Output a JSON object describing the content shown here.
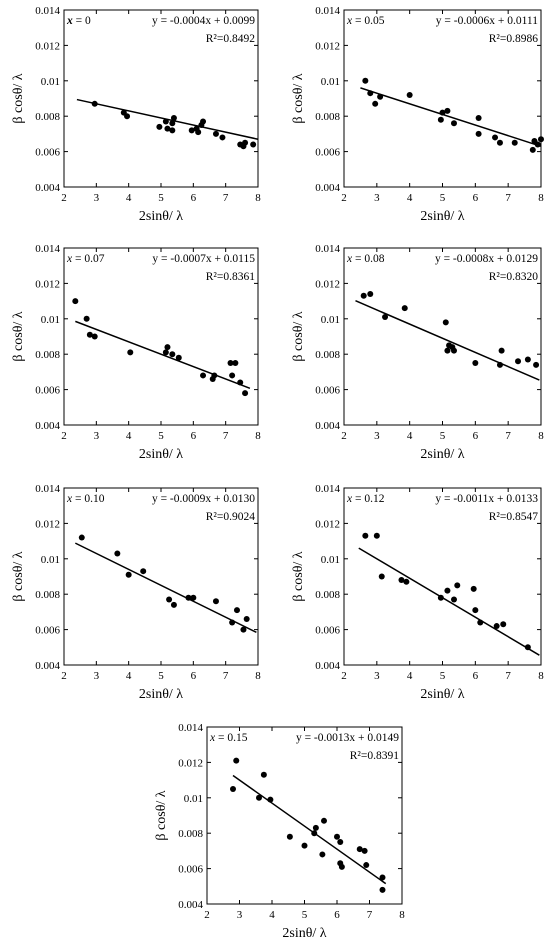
{
  "chart_data": [
    {
      "type": "scatter",
      "xlabel": "2sinθ/ λ",
      "ylabel": "β cosθ/ λ",
      "xlim": [
        2,
        8
      ],
      "ylim": [
        0.004,
        0.014
      ],
      "xticks": [
        "2",
        "3",
        "4",
        "5",
        "6",
        "7",
        "8"
      ],
      "yticks": [
        "0.004",
        "0.006",
        "0.008",
        "0.01",
        "0.012",
        "0.014"
      ],
      "grid": false,
      "label_var": "x",
      "label_val": "= 0",
      "equation": "y = -0.0004x + 0.0099",
      "r2": "R²=0.8492",
      "fit": {
        "slope": -0.0004,
        "intercept": 0.0099,
        "x_range": [
          2.4,
          8.0
        ]
      },
      "points": [
        [
          2.95,
          0.0087
        ],
        [
          3.85,
          0.0082
        ],
        [
          3.95,
          0.008
        ],
        [
          4.95,
          0.0074
        ],
        [
          5.15,
          0.0077
        ],
        [
          5.2,
          0.0073
        ],
        [
          5.35,
          0.0076
        ],
        [
          5.4,
          0.0079
        ],
        [
          5.35,
          0.0072
        ],
        [
          5.95,
          0.0072
        ],
        [
          6.1,
          0.0073
        ],
        [
          6.15,
          0.0071
        ],
        [
          6.25,
          0.0075
        ],
        [
          6.3,
          0.0077
        ],
        [
          6.7,
          0.007
        ],
        [
          6.9,
          0.0068
        ],
        [
          7.45,
          0.0064
        ],
        [
          7.55,
          0.0063
        ],
        [
          7.6,
          0.0065
        ],
        [
          7.85,
          0.0064
        ]
      ]
    },
    {
      "type": "scatter",
      "xlabel": "2sinθ/ λ",
      "ylabel": "β cosθ/ λ",
      "xlim": [
        2,
        8
      ],
      "ylim": [
        0.004,
        0.014
      ],
      "xticks": [
        "2",
        "3",
        "4",
        "5",
        "6",
        "7",
        "8"
      ],
      "yticks": [
        "0.004",
        "0.006",
        "0.008",
        "0.01",
        "0.012",
        "0.014"
      ],
      "grid": false,
      "label_var": "x",
      "label_val": "= 0.05",
      "equation": "y = -0.0006x + 0.0111",
      "r2": "R²=0.8986",
      "fit": {
        "slope": -0.0006,
        "intercept": 0.0111,
        "x_range": [
          2.5,
          8.0
        ]
      },
      "points": [
        [
          2.65,
          0.01
        ],
        [
          2.8,
          0.0093
        ],
        [
          2.95,
          0.0087
        ],
        [
          3.1,
          0.0091
        ],
        [
          4.0,
          0.0092
        ],
        [
          4.95,
          0.0078
        ],
        [
          5.0,
          0.0082
        ],
        [
          5.15,
          0.0083
        ],
        [
          5.35,
          0.0076
        ],
        [
          6.1,
          0.007
        ],
        [
          6.1,
          0.0079
        ],
        [
          6.6,
          0.0068
        ],
        [
          6.75,
          0.0065
        ],
        [
          7.2,
          0.0065
        ],
        [
          7.75,
          0.0061
        ],
        [
          7.8,
          0.0066
        ],
        [
          7.9,
          0.0064
        ],
        [
          8.0,
          0.0067
        ]
      ]
    },
    {
      "type": "scatter",
      "xlabel": "2sinθ/ λ",
      "ylabel": "β cosθ/ λ",
      "xlim": [
        2,
        8
      ],
      "ylim": [
        0.004,
        0.014
      ],
      "xticks": [
        "2",
        "3",
        "4",
        "5",
        "6",
        "7",
        "8"
      ],
      "yticks": [
        "0.004",
        "0.006",
        "0.008",
        "0.01",
        "0.012",
        "0.014"
      ],
      "grid": false,
      "label_var": "x",
      "label_val": "= 0.07",
      "equation": "y = -0.0007x + 0.0115",
      "r2": "R²=0.8361",
      "fit": {
        "slope": -0.0007,
        "intercept": 0.0115,
        "x_range": [
          2.35,
          7.75
        ]
      },
      "points": [
        [
          2.35,
          0.011
        ],
        [
          2.7,
          0.01
        ],
        [
          2.8,
          0.0091
        ],
        [
          2.95,
          0.009
        ],
        [
          4.05,
          0.0081
        ],
        [
          5.15,
          0.0081
        ],
        [
          5.2,
          0.0084
        ],
        [
          5.35,
          0.008
        ],
        [
          5.55,
          0.0078
        ],
        [
          6.3,
          0.0068
        ],
        [
          6.6,
          0.0066
        ],
        [
          6.65,
          0.0068
        ],
        [
          7.15,
          0.0075
        ],
        [
          7.2,
          0.0068
        ],
        [
          7.3,
          0.0075
        ],
        [
          7.45,
          0.0064
        ],
        [
          7.6,
          0.0058
        ]
      ]
    },
    {
      "type": "scatter",
      "xlabel": "2sinθ/ λ",
      "ylabel": "β cosθ/ λ",
      "xlim": [
        2,
        8
      ],
      "ylim": [
        0.004,
        0.014
      ],
      "xticks": [
        "2",
        "3",
        "4",
        "5",
        "6",
        "7",
        "8"
      ],
      "yticks": [
        "0.004",
        "0.006",
        "0.008",
        "0.01",
        "0.012",
        "0.014"
      ],
      "grid": false,
      "label_var": "x",
      "label_val": "= 0.08",
      "equation": "y = -0.0008x + 0.0129",
      "r2": "R²=0.8320",
      "fit": {
        "slope": -0.0008,
        "intercept": 0.0129,
        "x_range": [
          2.35,
          7.95
        ]
      },
      "points": [
        [
          2.6,
          0.0113
        ],
        [
          2.8,
          0.0114
        ],
        [
          3.25,
          0.0101
        ],
        [
          3.85,
          0.0106
        ],
        [
          5.1,
          0.0098
        ],
        [
          5.15,
          0.0082
        ],
        [
          5.2,
          0.0085
        ],
        [
          5.3,
          0.0084
        ],
        [
          5.35,
          0.0082
        ],
        [
          6.0,
          0.0075
        ],
        [
          6.75,
          0.0074
        ],
        [
          6.8,
          0.0082
        ],
        [
          7.3,
          0.0076
        ],
        [
          7.6,
          0.0077
        ],
        [
          7.85,
          0.0074
        ]
      ]
    },
    {
      "type": "scatter",
      "xlabel": "2sinθ/ λ",
      "ylabel": "β cosθ/ λ",
      "xlim": [
        2,
        8
      ],
      "ylim": [
        0.004,
        0.014
      ],
      "xticks": [
        "2",
        "3",
        "4",
        "5",
        "6",
        "7",
        "8"
      ],
      "yticks": [
        "0.004",
        "0.006",
        "0.008",
        "0.01",
        "0.012",
        "0.014"
      ],
      "grid": false,
      "label_var": "x",
      "label_val": "= 0.10",
      "equation": "y = -0.0009x + 0.0130",
      "r2": "R²=0.9024",
      "fit": {
        "slope": -0.0009,
        "intercept": 0.013,
        "x_range": [
          2.35,
          7.95
        ]
      },
      "points": [
        [
          2.55,
          0.0112
        ],
        [
          3.65,
          0.0103
        ],
        [
          4.0,
          0.0091
        ],
        [
          4.45,
          0.0093
        ],
        [
          5.25,
          0.0077
        ],
        [
          5.4,
          0.0074
        ],
        [
          5.85,
          0.0078
        ],
        [
          6.0,
          0.0078
        ],
        [
          6.7,
          0.0076
        ],
        [
          7.2,
          0.0064
        ],
        [
          7.35,
          0.0071
        ],
        [
          7.55,
          0.006
        ],
        [
          7.65,
          0.0066
        ]
      ]
    },
    {
      "type": "scatter",
      "xlabel": "2sinθ/ λ",
      "ylabel": "β cosθ/ λ",
      "xlim": [
        2,
        8
      ],
      "ylim": [
        0.004,
        0.014
      ],
      "xticks": [
        "2",
        "3",
        "4",
        "5",
        "6",
        "7",
        "8"
      ],
      "yticks": [
        "0.004",
        "0.006",
        "0.008",
        "0.01",
        "0.012",
        "0.014"
      ],
      "grid": false,
      "label_var": "x",
      "label_val": "= 0.12",
      "equation": "y = -0.0011x + 0.0133",
      "r2": "R²=0.8547",
      "fit": {
        "slope": -0.0011,
        "intercept": 0.0133,
        "x_range": [
          2.45,
          7.95
        ]
      },
      "points": [
        [
          2.65,
          0.0113
        ],
        [
          3.0,
          0.0113
        ],
        [
          3.15,
          0.009
        ],
        [
          3.75,
          0.0088
        ],
        [
          3.9,
          0.0087
        ],
        [
          4.95,
          0.0078
        ],
        [
          5.15,
          0.0082
        ],
        [
          5.35,
          0.0077
        ],
        [
          5.45,
          0.0085
        ],
        [
          5.95,
          0.0083
        ],
        [
          6.0,
          0.0071
        ],
        [
          6.15,
          0.0064
        ],
        [
          6.65,
          0.0062
        ],
        [
          6.85,
          0.0063
        ],
        [
          7.6,
          0.005
        ]
      ]
    },
    {
      "type": "scatter",
      "xlabel": "2sinθ/ λ",
      "ylabel": "β cosθ/ λ",
      "xlim": [
        2,
        8
      ],
      "ylim": [
        0.004,
        0.014
      ],
      "xticks": [
        "2",
        "3",
        "4",
        "5",
        "6",
        "7",
        "8"
      ],
      "yticks": [
        "0.004",
        "0.006",
        "0.008",
        "0.01",
        "0.012",
        "0.014"
      ],
      "grid": false,
      "label_var": "x",
      "label_val": "= 0.15",
      "equation": "y = -0.0013x + 0.0149",
      "r2": "R²=0.8391",
      "fit": {
        "slope": -0.0013,
        "intercept": 0.0149,
        "x_range": [
          2.8,
          7.5
        ]
      },
      "points": [
        [
          2.8,
          0.0105
        ],
        [
          2.9,
          0.0121
        ],
        [
          3.6,
          0.01
        ],
        [
          3.75,
          0.0113
        ],
        [
          3.95,
          0.0099
        ],
        [
          4.55,
          0.0078
        ],
        [
          5.0,
          0.0073
        ],
        [
          5.3,
          0.008
        ],
        [
          5.35,
          0.0083
        ],
        [
          5.55,
          0.0068
        ],
        [
          5.6,
          0.0087
        ],
        [
          6.0,
          0.0078
        ],
        [
          6.1,
          0.0075
        ],
        [
          6.1,
          0.0063
        ],
        [
          6.15,
          0.0061
        ],
        [
          6.7,
          0.0071
        ],
        [
          6.85,
          0.007
        ],
        [
          6.9,
          0.0062
        ],
        [
          7.4,
          0.0055
        ],
        [
          7.4,
          0.0048
        ]
      ]
    }
  ]
}
